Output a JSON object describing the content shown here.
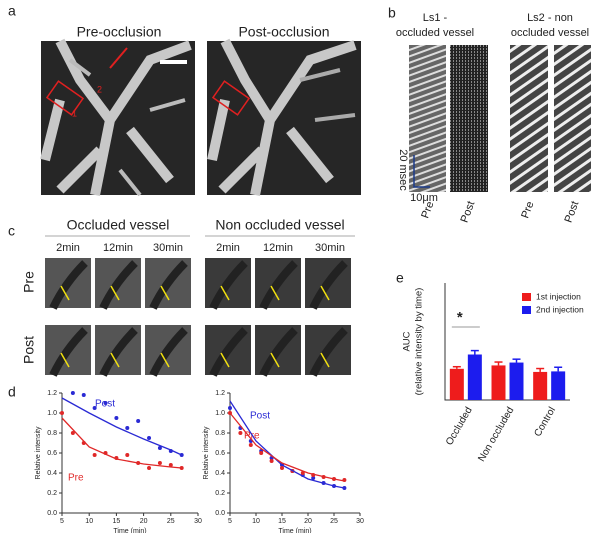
{
  "figure": {
    "panel_labels": [
      "a",
      "b",
      "c",
      "d",
      "e"
    ],
    "a": {
      "titles": [
        "Pre-occlusion",
        "Post-occlusion"
      ],
      "markers": [
        "1",
        "2"
      ]
    },
    "b": {
      "groups": [
        [
          "Ls1 -",
          "occluded vessel"
        ],
        [
          "Ls2 - non",
          "occluded vessel"
        ]
      ],
      "scale_time": "20 msec",
      "scale_space": "10μm",
      "columns": [
        "Pre",
        "Post",
        "Pre",
        "Post"
      ]
    },
    "c": {
      "groups": [
        "Occluded vessel",
        "Non occluded vessel"
      ],
      "times": [
        "2min",
        "12min",
        "30min",
        "2min",
        "12min",
        "30min"
      ],
      "rows": [
        "Pre",
        "Post"
      ]
    }
  },
  "chart_data": [
    {
      "type": "scatter",
      "xlabel": "Time (min)",
      "ylabel": "Relative intensity",
      "xlim": [
        5,
        30
      ],
      "ylim": [
        0,
        1.2
      ],
      "xticks": [
        5,
        10,
        15,
        20,
        25,
        30
      ],
      "yticks": [
        {
          "value": 0,
          "label": "0.0"
        },
        {
          "value": 0.2,
          "label": "0.2"
        },
        {
          "value": 0.4,
          "label": "0.4"
        },
        {
          "value": 0.6,
          "label": "0.6"
        },
        {
          "value": 0.8,
          "label": "0.8"
        },
        {
          "value": 1,
          "label": "1.0"
        },
        {
          "value": 1.2,
          "label": "1.2"
        }
      ],
      "series": [
        {
          "name": "Post",
          "color": "#2a2ad4",
          "x": [
            7,
            9,
            11,
            13,
            15,
            17,
            19,
            21,
            23,
            25,
            27
          ],
          "values": [
            1.2,
            1.18,
            1.05,
            1.1,
            0.95,
            0.85,
            0.92,
            0.75,
            0.65,
            0.62,
            0.58
          ]
        },
        {
          "name": "Pre",
          "color": "#e02828",
          "x": [
            5,
            7,
            9,
            11,
            13,
            15,
            17,
            19,
            21,
            23,
            25,
            27
          ],
          "values": [
            1.0,
            0.8,
            0.7,
            0.58,
            0.6,
            0.55,
            0.58,
            0.5,
            0.45,
            0.5,
            0.48,
            0.45
          ]
        },
        {
          "style": "line",
          "color": "#2a2ad4",
          "x": [
            5,
            10,
            15,
            20,
            25,
            27
          ],
          "values": [
            1.15,
            1.0,
            0.86,
            0.74,
            0.63,
            0.58
          ]
        },
        {
          "style": "line",
          "color": "#e02828",
          "x": [
            5,
            10,
            15,
            20,
            25,
            27
          ],
          "values": [
            0.95,
            0.66,
            0.54,
            0.49,
            0.46,
            0.45
          ]
        }
      ]
    },
    {
      "type": "scatter",
      "xlabel": "Time (min)",
      "ylabel": "Relative intensity",
      "xlim": [
        5,
        30
      ],
      "ylim": [
        0,
        1.2
      ],
      "xticks": [
        5,
        10,
        15,
        20,
        25,
        30
      ],
      "yticks": [
        {
          "value": 0,
          "label": "0.0"
        },
        {
          "value": 0.2,
          "label": "0.2"
        },
        {
          "value": 0.4,
          "label": "0.4"
        },
        {
          "value": 0.6,
          "label": "0.6"
        },
        {
          "value": 0.8,
          "label": "0.8"
        },
        {
          "value": 1,
          "label": "1.0"
        },
        {
          "value": 1.2,
          "label": "1.2"
        }
      ],
      "series": [
        {
          "name": "Post",
          "color": "#2a2ad4",
          "x": [
            5,
            7,
            9,
            11,
            13,
            15,
            17,
            19,
            21,
            23,
            25,
            27
          ],
          "values": [
            1.05,
            0.85,
            0.72,
            0.62,
            0.55,
            0.48,
            0.42,
            0.38,
            0.35,
            0.3,
            0.27,
            0.25
          ]
        },
        {
          "name": "Pre",
          "color": "#e02828",
          "x": [
            5,
            7,
            9,
            11,
            13,
            15,
            17,
            19,
            21,
            23,
            25,
            27
          ],
          "values": [
            1.0,
            0.8,
            0.68,
            0.6,
            0.52,
            0.45,
            0.42,
            0.4,
            0.38,
            0.36,
            0.34,
            0.33
          ]
        },
        {
          "style": "line",
          "color": "#2a2ad4",
          "x": [
            5,
            10,
            15,
            20,
            25,
            27
          ],
          "values": [
            1.12,
            0.72,
            0.48,
            0.34,
            0.27,
            0.25
          ]
        },
        {
          "style": "line",
          "color": "#e02828",
          "x": [
            5,
            10,
            15,
            20,
            25,
            27
          ],
          "values": [
            1.0,
            0.68,
            0.5,
            0.4,
            0.34,
            0.32
          ]
        }
      ]
    },
    {
      "type": "bar",
      "ylabel": [
        "AUC",
        "(relative intensity by time)"
      ],
      "ylim": [
        0,
        45
      ],
      "categories": [
        "Occluded",
        "Non occluded",
        "Control"
      ],
      "annotation": "*",
      "series": [
        {
          "name": "1st injection",
          "color": "#ee1c1c",
          "values": [
            12,
            13.3,
            10.8
          ],
          "errors": [
            0.8,
            1.3,
            1.3
          ]
        },
        {
          "name": "2nd injection",
          "color": "#1c1cee",
          "values": [
            17.5,
            14.4,
            11
          ],
          "errors": [
            1.5,
            1.3,
            1.6
          ]
        }
      ]
    }
  ]
}
